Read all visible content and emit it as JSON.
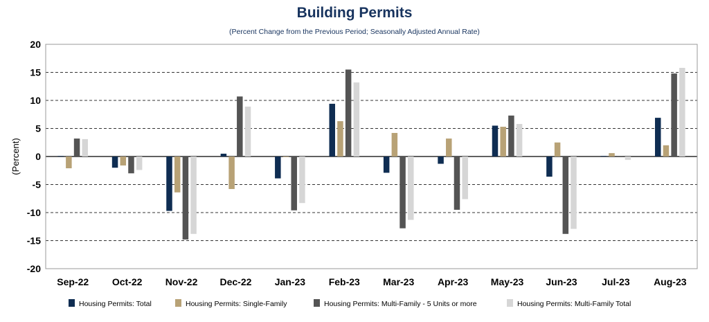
{
  "chart_data": {
    "type": "bar",
    "title": "Building Permits",
    "subtitle": "(Percent Change from the Previous Period; Seasonally Adjusted Annual Rate)",
    "ylabel": "(Percent)",
    "xlabel": "",
    "ylim": [
      -20,
      20
    ],
    "yticks": [
      20,
      15,
      10,
      5,
      0,
      -5,
      -10,
      -15,
      -20
    ],
    "grid": "horizontal-dashed",
    "legend_position": "bottom",
    "categories": [
      "Sep-22",
      "Oct-22",
      "Nov-22",
      "Dec-22",
      "Jan-23",
      "Feb-23",
      "Mar-23",
      "Apr-23",
      "May-23",
      "Jun-23",
      "Jul-23",
      "Aug-23"
    ],
    "series": [
      {
        "name": "Housing Permits: Total",
        "color": "#0f2d52",
        "values": [
          0.1,
          -2.0,
          -9.7,
          0.5,
          -3.9,
          9.4,
          -2.9,
          -1.3,
          5.5,
          -3.6,
          0.1,
          6.9
        ]
      },
      {
        "name": "Housing Permits: Single-Family",
        "color": "#b8a276",
        "values": [
          -2.1,
          -1.6,
          -6.4,
          -5.8,
          0.0,
          6.3,
          4.2,
          3.2,
          5.3,
          2.5,
          0.6,
          2.0
        ]
      },
      {
        "name": "Housing Permits: Multi-Family - 5 Units or more",
        "color": "#545454",
        "values": [
          3.2,
          -3.0,
          -14.8,
          10.7,
          -9.6,
          15.5,
          -12.8,
          -9.5,
          7.3,
          -13.8,
          0.1,
          14.8
        ]
      },
      {
        "name": "Housing Permits: Multi-Family Total",
        "color": "#d6d6d6",
        "values": [
          3.1,
          -2.4,
          -13.8,
          8.9,
          -8.3,
          13.2,
          -11.3,
          -7.6,
          5.8,
          -12.9,
          -0.6,
          15.8
        ]
      }
    ]
  }
}
